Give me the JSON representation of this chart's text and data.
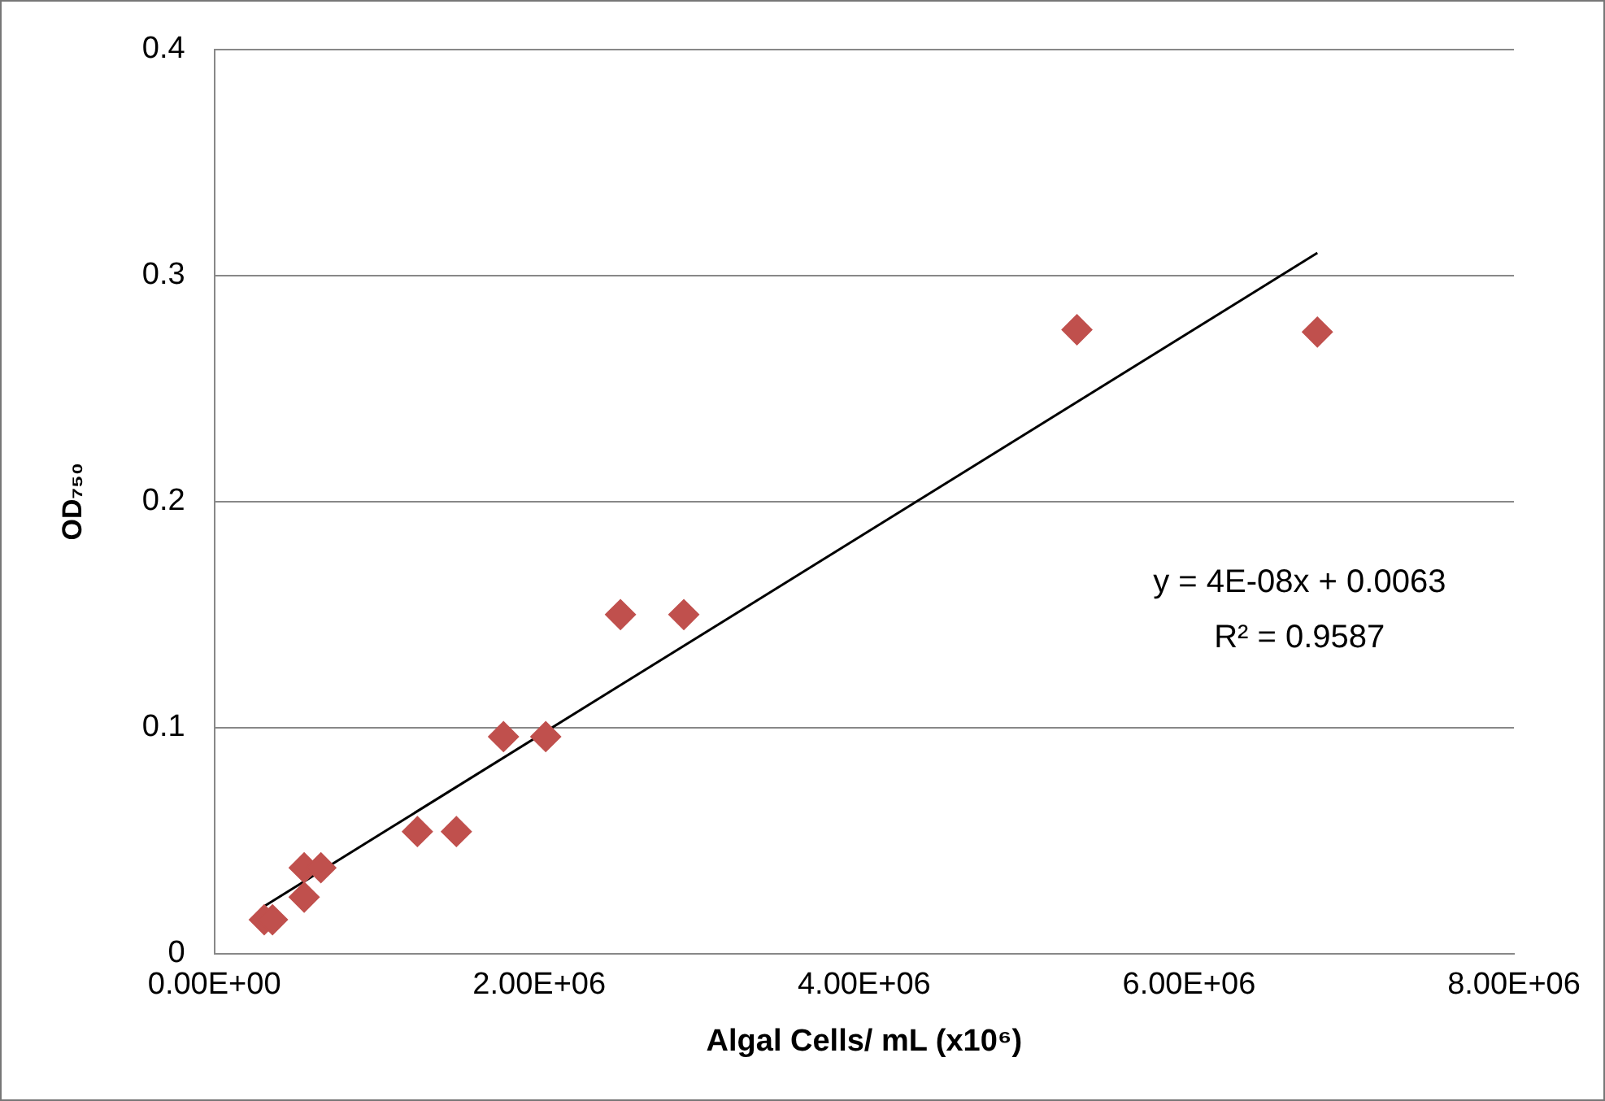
{
  "chart_data": {
    "type": "scatter",
    "xlabel": "Algal Cells/ mL (x10⁶)",
    "ylabel": "OD₇₅₀",
    "xlim": [
      0,
      8000000
    ],
    "xticks": [
      {
        "value": 0,
        "label": "0.00E+00"
      },
      {
        "value": 2000000,
        "label": "2.00E+06"
      },
      {
        "value": 4000000,
        "label": "4.00E+06"
      },
      {
        "value": 6000000,
        "label": "6.00E+06"
      },
      {
        "value": 8000000,
        "label": "8.00E+06"
      }
    ],
    "ylim": [
      0,
      0.4
    ],
    "yticks": [
      0,
      0.1,
      0.2,
      0.3,
      0.4
    ],
    "grid": "y",
    "series": [
      {
        "marker": "diamond",
        "color": "#c0504d",
        "x": [
          307000,
          358000,
          553000,
          656000,
          553000,
          1250000,
          1490000,
          1780000,
          2040000,
          2500000,
          2890000,
          5310000,
          6790000
        ],
        "values": [
          0.015,
          0.015,
          0.038,
          0.038,
          0.025,
          0.054,
          0.054,
          0.096,
          0.096,
          0.15,
          0.15,
          0.276,
          0.275
        ]
      },
      {
        "type": "line",
        "marker": "none",
        "color": "#000000",
        "x": [
          307000,
          6790000
        ],
        "values": [
          0.021,
          0.31
        ]
      }
    ],
    "annotations": [
      "y = 4E-08x + 0.0063",
      "R² = 0.9587"
    ]
  }
}
